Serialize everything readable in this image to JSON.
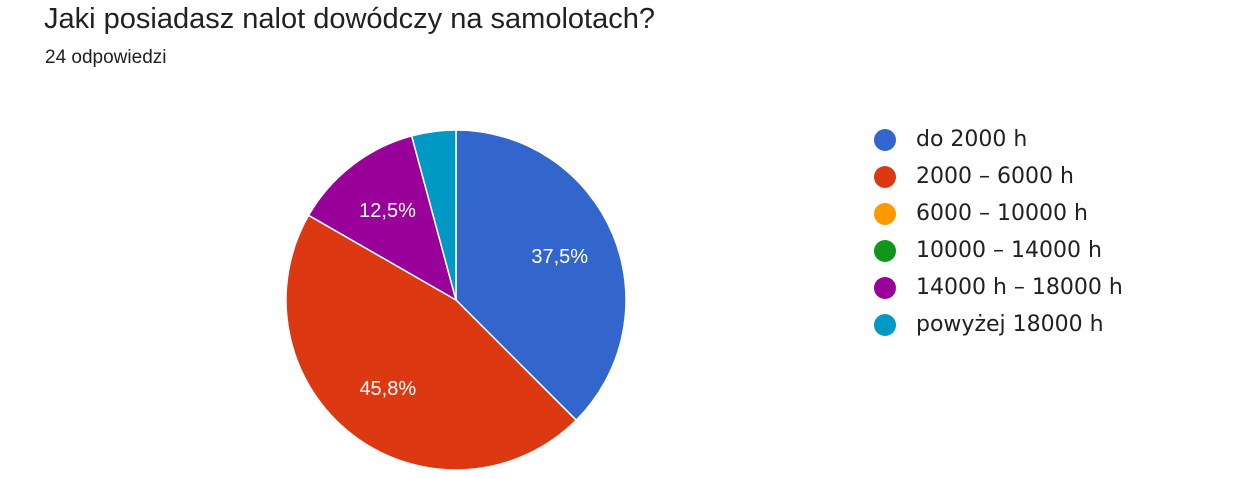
{
  "header": {
    "title": "Jaki posiadasz nalot dowódczy na samolotach?",
    "responses": "24 odpowiedzi"
  },
  "chart_data": {
    "type": "pie",
    "total": 24,
    "start_angle_deg": 90,
    "direction": "clockwise",
    "legend_position": "right",
    "slices": [
      {
        "name": "do 2000 h",
        "value": 37.5,
        "label": "37,5%",
        "color": "#3366cc",
        "icon": "circle"
      },
      {
        "name": "2000 – 6000 h",
        "value": 45.8,
        "label": "45,8%",
        "color": "#dc3912",
        "icon": "circle"
      },
      {
        "name": "6000 – 10000 h",
        "value": 0,
        "label": "",
        "color": "#ff9900",
        "icon": "circle"
      },
      {
        "name": "10000 – 14000 h",
        "value": 0,
        "label": "",
        "color": "#109618",
        "icon": "circle"
      },
      {
        "name": "14000 h – 18000 h",
        "value": 12.5,
        "label": "12,5%",
        "color": "#990099",
        "icon": "circle"
      },
      {
        "name": "powyżej 18000 h",
        "value": 4.2,
        "label": "",
        "color": "#0099c6",
        "icon": "circle"
      }
    ]
  }
}
